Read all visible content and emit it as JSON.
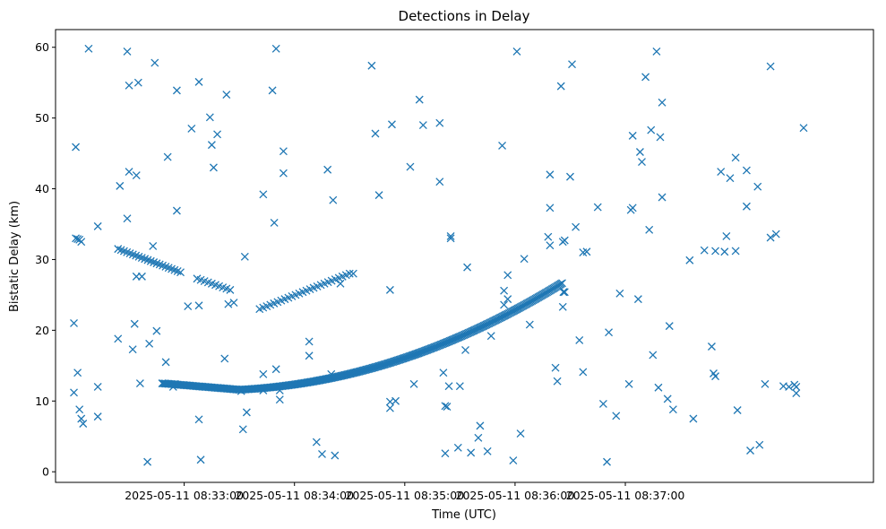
{
  "chart_data": {
    "type": "scatter",
    "title": "Detections in Delay",
    "xlabel": "Time (UTC)",
    "ylabel": "Bistatic Delay (km)",
    "marker": "x",
    "color": "#1f77b4",
    "xlim_seconds": [
      -70,
      375
    ],
    "ylim": [
      -1.5,
      62.5
    ],
    "x_ticks": [
      {
        "t": 0,
        "label": "2025-05-11 08:33:00"
      },
      {
        "t": 60,
        "label": "2025-05-11 08:34:00"
      },
      {
        "t": 120,
        "label": "2025-05-11 08:35:00"
      },
      {
        "t": 180,
        "label": "2025-05-11 08:36:00"
      },
      {
        "t": 240,
        "label": "2025-05-11 08:37:00"
      }
    ],
    "y_ticks": [
      0,
      10,
      20,
      30,
      40,
      50,
      60
    ],
    "tracks": [
      {
        "name": "track-descending-upper",
        "t_start": -36,
        "t_end": -2,
        "y_start": 31.5,
        "y_end": 28.2,
        "count": 22
      },
      {
        "name": "track-descending-upper-2",
        "t_start": 7,
        "t_end": 25,
        "y_start": 27.3,
        "y_end": 25.7,
        "count": 10
      },
      {
        "name": "track-main-low",
        "t_start": -12,
        "t_end": 207,
        "y_fn": "parabola",
        "count": 320
      },
      {
        "name": "track-main-high",
        "t_start": 41,
        "t_end": 90,
        "y_start": 23.0,
        "y_end": 28.0,
        "count": 26
      }
    ],
    "points": [
      [
        -59,
        33.0
      ],
      [
        -58,
        32.9
      ],
      [
        -57,
        32.8
      ],
      [
        -56,
        32.5
      ],
      [
        -60,
        21.0
      ],
      [
        -60,
        11.2
      ],
      [
        -58,
        14.0
      ],
      [
        -57,
        8.8
      ],
      [
        -56,
        7.5
      ],
      [
        -55,
        6.8
      ],
      [
        -59,
        45.9
      ],
      [
        -52,
        59.8
      ],
      [
        -47,
        34.7
      ],
      [
        -47,
        12.0
      ],
      [
        -47,
        7.8
      ],
      [
        -36,
        18.8
      ],
      [
        -35,
        40.4
      ],
      [
        -31,
        59.4
      ],
      [
        -30,
        54.6
      ],
      [
        -31,
        35.8
      ],
      [
        -30,
        42.4
      ],
      [
        -28,
        17.3
      ],
      [
        -26,
        41.9
      ],
      [
        -25,
        55.0
      ],
      [
        -27,
        20.9
      ],
      [
        -26,
        27.6
      ],
      [
        -23,
        27.6
      ],
      [
        -24,
        12.5
      ],
      [
        -20,
        1.4
      ],
      [
        -19,
        18.1
      ],
      [
        -17,
        31.9
      ],
      [
        -15,
        19.9
      ],
      [
        -16,
        57.8
      ],
      [
        -9,
        44.5
      ],
      [
        -10,
        15.5
      ],
      [
        -6,
        12.0
      ],
      [
        -5,
        12.4
      ],
      [
        -4,
        36.9
      ],
      [
        -4,
        53.9
      ],
      [
        2,
        23.4
      ],
      [
        4,
        48.5
      ],
      [
        8,
        23.5
      ],
      [
        8,
        55.1
      ],
      [
        8,
        7.4
      ],
      [
        9,
        1.7
      ],
      [
        14,
        50.1
      ],
      [
        15,
        46.2
      ],
      [
        16,
        43.0
      ],
      [
        18,
        47.7
      ],
      [
        22,
        16.0
      ],
      [
        23,
        53.3
      ],
      [
        24,
        23.7
      ],
      [
        27,
        23.9
      ],
      [
        31,
        11.4
      ],
      [
        32,
        6.0
      ],
      [
        34,
        8.4
      ],
      [
        33,
        30.4
      ],
      [
        43,
        39.2
      ],
      [
        43,
        13.8
      ],
      [
        43,
        11.5
      ],
      [
        48,
        53.9
      ],
      [
        49,
        35.2
      ],
      [
        50,
        59.8
      ],
      [
        50,
        14.5
      ],
      [
        52,
        10.2
      ],
      [
        52,
        11.5
      ],
      [
        54,
        42.2
      ],
      [
        54,
        45.3
      ],
      [
        68,
        18.4
      ],
      [
        68,
        16.4
      ],
      [
        72,
        4.2
      ],
      [
        75,
        2.5
      ],
      [
        78,
        42.7
      ],
      [
        80,
        13.8
      ],
      [
        81,
        38.4
      ],
      [
        82,
        2.3
      ],
      [
        85,
        26.6
      ],
      [
        92,
        28.0
      ],
      [
        102,
        57.4
      ],
      [
        104,
        47.8
      ],
      [
        106,
        39.1
      ],
      [
        112,
        25.7
      ],
      [
        112,
        9.0
      ],
      [
        113,
        49.1
      ],
      [
        112,
        9.9
      ],
      [
        115,
        10.0
      ],
      [
        123,
        43.1
      ],
      [
        125,
        12.4
      ],
      [
        128,
        52.6
      ],
      [
        130,
        49.0
      ],
      [
        139,
        49.3
      ],
      [
        139,
        41.0
      ],
      [
        141,
        14.0
      ],
      [
        142,
        9.3
      ],
      [
        142,
        2.6
      ],
      [
        143,
        9.2
      ],
      [
        144,
        12.1
      ],
      [
        145,
        33.3
      ],
      [
        145,
        33.0
      ],
      [
        149,
        3.4
      ],
      [
        150,
        12.1
      ],
      [
        153,
        17.2
      ],
      [
        154,
        28.9
      ],
      [
        156,
        2.7
      ],
      [
        160,
        4.8
      ],
      [
        161,
        6.5
      ],
      [
        165,
        2.9
      ],
      [
        167,
        19.2
      ],
      [
        173,
        46.1
      ],
      [
        174,
        23.6
      ],
      [
        174,
        25.6
      ],
      [
        176,
        24.4
      ],
      [
        176,
        27.8
      ],
      [
        181,
        59.4
      ],
      [
        179,
        1.6
      ],
      [
        183,
        5.4
      ],
      [
        185,
        30.1
      ],
      [
        188,
        20.8
      ],
      [
        198,
        33.2
      ],
      [
        199,
        37.3
      ],
      [
        199,
        32.0
      ],
      [
        199,
        42.0
      ],
      [
        202,
        14.7
      ],
      [
        203,
        12.8
      ],
      [
        205,
        54.5
      ],
      [
        206,
        23.3
      ],
      [
        206,
        32.5
      ],
      [
        207,
        32.7
      ],
      [
        210,
        41.7
      ],
      [
        211,
        57.6
      ],
      [
        213,
        34.6
      ],
      [
        215,
        18.6
      ],
      [
        217,
        14.1
      ],
      [
        217,
        31.0
      ],
      [
        219,
        31.1
      ],
      [
        225,
        37.4
      ],
      [
        228,
        9.6
      ],
      [
        230,
        1.4
      ],
      [
        231,
        19.7
      ],
      [
        235,
        7.9
      ],
      [
        237,
        25.2
      ],
      [
        242,
        12.4
      ],
      [
        243,
        37.0
      ],
      [
        244,
        37.3
      ],
      [
        244,
        47.5
      ],
      [
        247,
        24.4
      ],
      [
        248,
        45.2
      ],
      [
        249,
        43.8
      ],
      [
        251,
        55.8
      ],
      [
        253,
        34.2
      ],
      [
        254,
        48.3
      ],
      [
        255,
        16.5
      ],
      [
        257,
        59.4
      ],
      [
        258,
        11.9
      ],
      [
        259,
        47.3
      ],
      [
        260,
        52.2
      ],
      [
        260,
        38.8
      ],
      [
        263,
        10.3
      ],
      [
        264,
        20.6
      ],
      [
        266,
        8.8
      ],
      [
        275,
        29.9
      ],
      [
        277,
        7.5
      ],
      [
        283,
        31.3
      ],
      [
        287,
        17.7
      ],
      [
        288,
        13.9
      ],
      [
        289,
        13.5
      ],
      [
        289,
        31.2
      ],
      [
        292,
        42.4
      ],
      [
        294,
        31.1
      ],
      [
        295,
        33.3
      ],
      [
        297,
        41.5
      ],
      [
        300,
        31.2
      ],
      [
        300,
        44.4
      ],
      [
        301,
        8.7
      ],
      [
        306,
        42.6
      ],
      [
        306,
        37.5
      ],
      [
        308,
        3.0
      ],
      [
        312,
        40.3
      ],
      [
        313,
        3.8
      ],
      [
        316,
        12.4
      ],
      [
        319,
        57.3
      ],
      [
        319,
        33.1
      ],
      [
        322,
        33.6
      ],
      [
        326,
        12.1
      ],
      [
        329,
        12.0
      ],
      [
        332,
        12.3
      ],
      [
        333,
        12.0
      ],
      [
        333,
        11.1
      ],
      [
        337,
        48.6
      ]
    ]
  }
}
